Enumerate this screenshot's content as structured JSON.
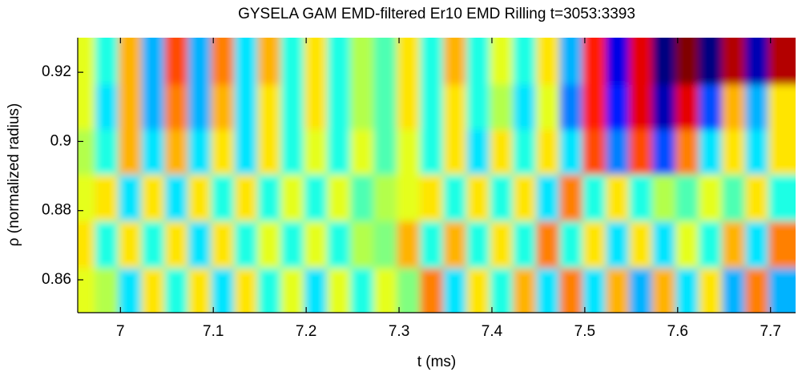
{
  "chart_data": {
    "type": "heatmap",
    "title": "GYSELA GAM EMD-filtered Er10 EMD Rilling t=3053:3393",
    "x_label": "t (ms)",
    "y_label": "ρ (normalized radius)",
    "colormap": "jet",
    "clim": [
      -1,
      1
    ],
    "xlim": [
      6.954,
      7.727
    ],
    "ylim": [
      0.8505,
      0.93
    ],
    "xticks": [
      7,
      7.1,
      7.2,
      7.3,
      7.4,
      7.5,
      7.6,
      7.7
    ],
    "yticks": [
      0.86,
      0.88,
      0.9,
      0.92
    ],
    "x": [
      6.96,
      6.985,
      7.01,
      7.035,
      7.06,
      7.085,
      7.11,
      7.135,
      7.16,
      7.185,
      7.21,
      7.235,
      7.26,
      7.285,
      7.31,
      7.335,
      7.36,
      7.385,
      7.41,
      7.435,
      7.46,
      7.485,
      7.51,
      7.535,
      7.56,
      7.585,
      7.61,
      7.635,
      7.66,
      7.685,
      7.71
    ],
    "y": [
      0.857,
      0.87,
      0.884,
      0.897,
      0.91,
      0.923
    ],
    "z": [
      [
        0.2,
        0.1,
        -0.3,
        0.3,
        -0.2,
        0.3,
        -0.3,
        0.3,
        -0.2,
        0.2,
        -0.3,
        0.2,
        -0.2,
        0.2,
        0.0,
        0.5,
        -0.3,
        0.3,
        -0.2,
        0.4,
        -0.3,
        0.5,
        -0.3,
        0.4,
        -0.4,
        0.4,
        -0.3,
        0.3,
        -0.4,
        0.5,
        -0.4
      ],
      [
        0.3,
        -0.2,
        0.3,
        -0.2,
        0.3,
        -0.3,
        0.3,
        -0.2,
        0.2,
        -0.2,
        0.2,
        -0.2,
        0.1,
        0.0,
        0.4,
        -0.2,
        0.4,
        -0.2,
        0.3,
        -0.2,
        0.5,
        -0.2,
        0.3,
        -0.3,
        0.3,
        -0.3,
        0.2,
        -0.2,
        0.4,
        -0.3,
        0.5
      ],
      [
        0.2,
        0.3,
        -0.3,
        0.3,
        -0.3,
        0.3,
        -0.2,
        0.3,
        -0.2,
        0.2,
        -0.2,
        0.2,
        -0.1,
        0.1,
        0.2,
        0.3,
        -0.2,
        0.3,
        -0.2,
        0.3,
        -0.3,
        0.5,
        -0.2,
        0.3,
        -0.2,
        0.1,
        -0.1,
        0.2,
        -0.1,
        0.3,
        -0.2
      ],
      [
        0.1,
        -0.2,
        0.4,
        -0.3,
        0.4,
        -0.3,
        0.3,
        -0.3,
        0.3,
        -0.2,
        0.2,
        -0.2,
        0.2,
        -0.1,
        0.2,
        -0.2,
        0.3,
        -0.3,
        0.3,
        -0.2,
        0.3,
        -0.3,
        0.6,
        -0.5,
        0.6,
        -0.6,
        0.5,
        -0.3,
        0.3,
        -0.3,
        0.3
      ],
      [
        0.2,
        -0.3,
        0.4,
        -0.4,
        0.5,
        -0.4,
        0.4,
        -0.3,
        0.3,
        -0.2,
        0.3,
        -0.2,
        0.1,
        -0.1,
        0.3,
        -0.2,
        0.3,
        -0.2,
        0.1,
        -0.3,
        0.2,
        -0.5,
        0.7,
        -0.7,
        0.8,
        -0.9,
        0.8,
        -0.6,
        0.4,
        -0.4,
        0.3
      ],
      [
        0.2,
        -0.2,
        0.4,
        -0.4,
        0.6,
        -0.4,
        0.5,
        -0.3,
        0.4,
        -0.2,
        0.3,
        -0.2,
        0.1,
        -0.1,
        0.3,
        -0.2,
        0.4,
        -0.2,
        0.2,
        -0.2,
        0.3,
        -0.4,
        0.7,
        -0.8,
        0.8,
        -1.0,
        1.0,
        -1.0,
        0.9,
        -0.9,
        0.9
      ]
    ]
  }
}
